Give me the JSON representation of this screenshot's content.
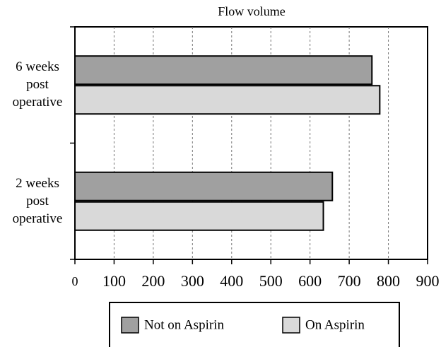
{
  "chart_data": {
    "type": "hbar",
    "title": "Flow volume",
    "categories": [
      "6 weeks post operative",
      "2 weeks post operative"
    ],
    "series": [
      {
        "name": "Not on Aspirin",
        "color": "#a0a0a0",
        "values": [
          758,
          657
        ]
      },
      {
        "name": "On Aspirin",
        "color": "#d9d9d9",
        "values": [
          778,
          634
        ]
      }
    ],
    "xlim": [
      0,
      900
    ],
    "xticks": [
      0,
      100,
      200,
      300,
      400,
      500,
      600,
      700,
      800,
      900
    ],
    "grid": true
  }
}
